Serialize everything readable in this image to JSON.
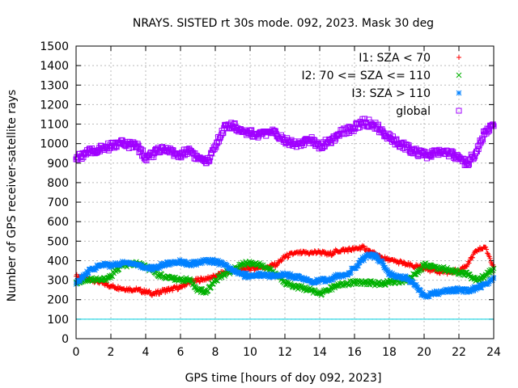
{
  "chart_data": {
    "type": "scatter",
    "title": "NRAYS. SISTED rt 30s mode. 092, 2023. Mask 30 deg",
    "xlabel": "GPS time [hours of doy 092, 2023]",
    "ylabel": "Number of GPS receiver-satellite rays",
    "xlim": [
      0,
      24
    ],
    "ylim": [
      0,
      1500
    ],
    "xticks": [
      0,
      2,
      4,
      6,
      8,
      10,
      12,
      14,
      16,
      18,
      20,
      22,
      24
    ],
    "yticks": [
      0,
      100,
      200,
      300,
      400,
      500,
      600,
      700,
      800,
      900,
      1000,
      1100,
      1200,
      1300,
      1400,
      1500
    ],
    "grid": true,
    "legend_position": "top-right",
    "reference_line": {
      "y": 100,
      "color": "#00d0e0"
    },
    "series": [
      {
        "name": "I1: SZA < 70",
        "marker": "+",
        "color": "#ff0000",
        "x": [
          0,
          0.5,
          1,
          1.5,
          2,
          2.5,
          3,
          3.5,
          4,
          4.5,
          5,
          5.5,
          6,
          6.5,
          7,
          7.5,
          8,
          8.5,
          9,
          9.5,
          10,
          10.5,
          11,
          11.5,
          12,
          12.5,
          13,
          13.5,
          14,
          14.5,
          15,
          15.5,
          16,
          16.5,
          17,
          17.5,
          18,
          18.5,
          19,
          19.5,
          20,
          20.5,
          21,
          21.5,
          22,
          22.5,
          23,
          23.5,
          24
        ],
        "values": [
          320,
          310,
          300,
          285,
          270,
          260,
          255,
          250,
          240,
          230,
          245,
          255,
          265,
          290,
          300,
          310,
          320,
          340,
          350,
          355,
          360,
          365,
          370,
          380,
          420,
          435,
          440,
          440,
          445,
          430,
          450,
          455,
          460,
          470,
          440,
          420,
          400,
          395,
          380,
          370,
          360,
          350,
          345,
          340,
          350,
          380,
          450,
          470,
          370
        ]
      },
      {
        "name": "I2: 70 <= SZA <= 110",
        "marker": "x",
        "color": "#00b000",
        "x": [
          0,
          0.5,
          1,
          1.5,
          2,
          2.5,
          3,
          3.5,
          4,
          4.5,
          5,
          5.5,
          6,
          6.5,
          7,
          7.5,
          8,
          8.5,
          9,
          9.5,
          10,
          10.5,
          11,
          11.5,
          12,
          12.5,
          13,
          13.5,
          14,
          14.5,
          15,
          15.5,
          16,
          16.5,
          17,
          17.5,
          18,
          18.5,
          19,
          19.5,
          20,
          20.5,
          21,
          21.5,
          22,
          22.5,
          23,
          23.5,
          24
        ],
        "values": [
          290,
          300,
          305,
          300,
          320,
          370,
          380,
          385,
          370,
          340,
          320,
          310,
          305,
          300,
          250,
          240,
          300,
          330,
          350,
          380,
          390,
          380,
          360,
          330,
          290,
          270,
          260,
          250,
          230,
          250,
          270,
          280,
          290,
          290,
          285,
          280,
          290,
          295,
          300,
          330,
          380,
          370,
          360,
          350,
          340,
          330,
          300,
          320,
          360
        ]
      },
      {
        "name": "I3: SZA > 110",
        "marker": "*",
        "color": "#0080ff",
        "x": [
          0,
          0.5,
          1,
          1.5,
          2,
          2.5,
          3,
          3.5,
          4,
          4.5,
          5,
          5.5,
          6,
          6.5,
          7,
          7.5,
          8,
          8.5,
          9,
          9.5,
          10,
          10.5,
          11,
          11.5,
          12,
          12.5,
          13,
          13.5,
          14,
          14.5,
          15,
          15.5,
          16,
          16.5,
          17,
          17.5,
          18,
          18.5,
          19,
          19.5,
          20,
          20.5,
          21,
          21.5,
          22,
          22.5,
          23,
          23.5,
          24
        ],
        "values": [
          280,
          330,
          360,
          380,
          375,
          385,
          390,
          380,
          365,
          360,
          380,
          390,
          395,
          380,
          390,
          400,
          395,
          380,
          350,
          330,
          320,
          330,
          325,
          320,
          330,
          320,
          310,
          290,
          300,
          300,
          320,
          330,
          360,
          410,
          430,
          400,
          330,
          320,
          310,
          270,
          220,
          230,
          240,
          250,
          250,
          245,
          260,
          280,
          310
        ]
      },
      {
        "name": "global",
        "marker": "square",
        "color": "#a000ff",
        "x": [
          0,
          0.5,
          1,
          1.5,
          2,
          2.5,
          3,
          3.5,
          4,
          4.5,
          5,
          5.5,
          6,
          6.5,
          7,
          7.5,
          8,
          8.5,
          9,
          9.5,
          10,
          10.5,
          11,
          11.5,
          12,
          12.5,
          13,
          13.5,
          14,
          14.5,
          15,
          15.5,
          16,
          16.5,
          17,
          17.5,
          18,
          18.5,
          19,
          19.5,
          20,
          20.5,
          21,
          21.5,
          22,
          22.5,
          23,
          23.5,
          24
        ],
        "values": [
          920,
          950,
          960,
          975,
          985,
          1000,
          995,
          985,
          930,
          950,
          975,
          960,
          935,
          975,
          920,
          900,
          990,
          1080,
          1090,
          1070,
          1055,
          1040,
          1060,
          1050,
          1020,
          1000,
          1000,
          1020,
          990,
          1010,
          1040,
          1070,
          1080,
          1110,
          1100,
          1070,
          1030,
          1000,
          980,
          960,
          940,
          950,
          960,
          950,
          920,
          900,
          960,
          1060,
          1090
        ]
      }
    ]
  }
}
